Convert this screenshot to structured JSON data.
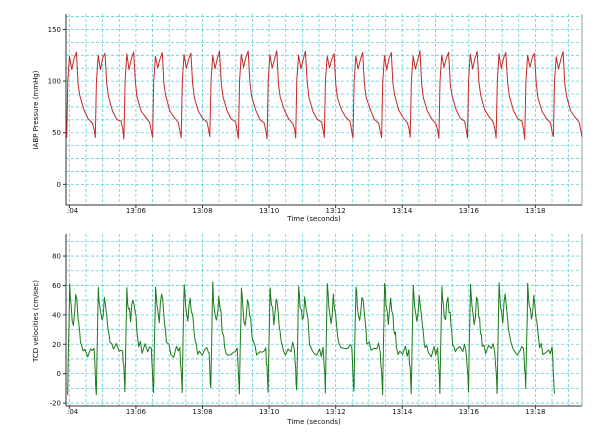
{
  "chart_data": [
    {
      "type": "line",
      "title": "",
      "xlabel": "Time (seconds)",
      "ylabel": "IABP Pressure  (mmHg)",
      "ylim": [
        -20,
        165
      ],
      "yticks": [
        0,
        50,
        100,
        150
      ],
      "xticks": [
        {
          "t": 4,
          "label": ":04"
        },
        {
          "t": 6,
          "label": "13:06"
        },
        {
          "t": 8,
          "label": "13:08"
        },
        {
          "t": 10,
          "label": "13:10"
        },
        {
          "t": 12,
          "label": "13:12"
        },
        {
          "t": 14,
          "label": "13:14"
        },
        {
          "t": 16,
          "label": "13:16"
        },
        {
          "t": 18,
          "label": "13:18"
        }
      ],
      "xrange": [
        3.9,
        19.4
      ],
      "grid": true,
      "series": [
        {
          "color": "#c62828",
          "beat_times": [
            3.92,
            4.78,
            5.64,
            6.5,
            7.36,
            8.22,
            9.08,
            9.94,
            10.8,
            11.66,
            12.52,
            13.38,
            14.24,
            15.1,
            15.96,
            16.82,
            17.68,
            18.54,
            19.4
          ],
          "waveform": {
            "phases": [
              0.0,
              0.04,
              0.1,
              0.18,
              0.26,
              0.34,
              0.4,
              0.46,
              0.6,
              0.75,
              0.9,
              0.96,
              1.0
            ],
            "values": [
              45,
              100,
              125,
              112,
              122,
              128,
              98,
              85,
              72,
              64,
              60,
              52,
              45
            ]
          }
        }
      ]
    },
    {
      "type": "line",
      "title": "",
      "xlabel": "Time (seconds)",
      "ylabel": "TCD velocities  (cm/sec)",
      "ylim": [
        -22,
        95
      ],
      "yticks": [
        -20,
        0,
        20,
        40,
        60,
        80
      ],
      "xticks": [
        {
          "t": 4,
          "label": ":04"
        },
        {
          "t": 6,
          "label": "13:06"
        },
        {
          "t": 8,
          "label": "13:08"
        },
        {
          "t": 10,
          "label": "13:10"
        },
        {
          "t": 12,
          "label": "13:12"
        },
        {
          "t": 14,
          "label": "13:14"
        },
        {
          "t": 16,
          "label": "13:16"
        },
        {
          "t": 18,
          "label": "13:18"
        }
      ],
      "xrange": [
        3.9,
        19.4
      ],
      "grid": true,
      "series": [
        {
          "color": "#1b7a1b",
          "beat_times": [
            3.95,
            4.81,
            5.67,
            6.53,
            7.39,
            8.25,
            9.11,
            9.97,
            10.83,
            11.69,
            12.55,
            13.41,
            14.27,
            15.13,
            15.99,
            16.85,
            17.71,
            18.57
          ],
          "waveform": {
            "phases": [
              0.0,
              0.03,
              0.07,
              0.12,
              0.2,
              0.28,
              0.36,
              0.42,
              0.48,
              0.6,
              0.8,
              0.92,
              0.96,
              1.0
            ],
            "values": [
              -12,
              20,
              60,
              45,
              35,
              52,
              40,
              28,
              20,
              15,
              17,
              16,
              4,
              -12
            ]
          }
        }
      ]
    }
  ]
}
